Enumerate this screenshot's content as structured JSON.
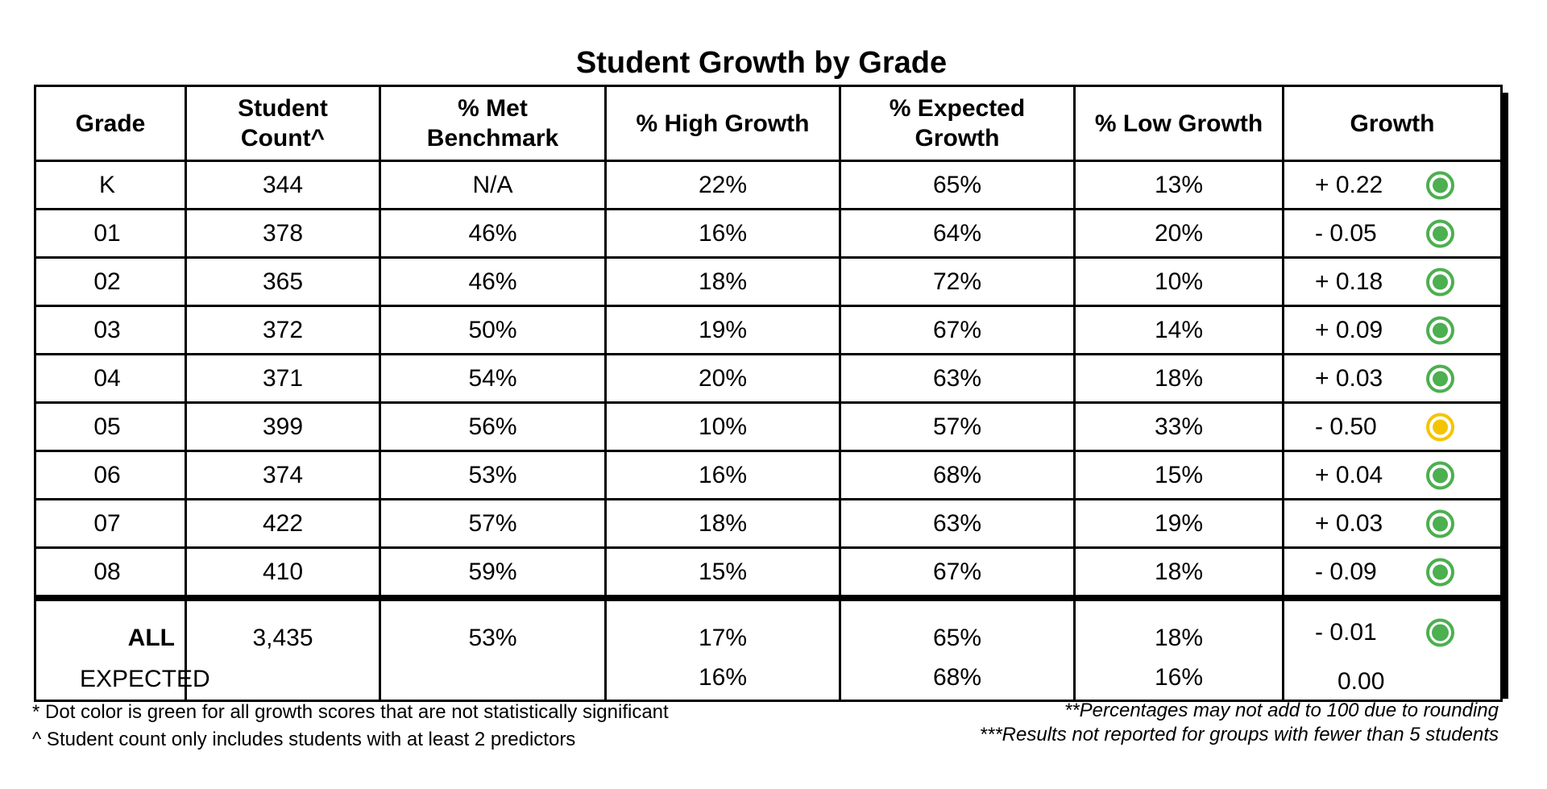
{
  "title": "Student Growth by Grade",
  "headers": {
    "grade": "Grade",
    "student_count_1": "Student",
    "student_count_2": "Count^",
    "met_benchmark_1": "% Met",
    "met_benchmark_2": "Benchmark",
    "high_growth": "% High Growth",
    "expected_growth_1": "% Expected",
    "expected_growth_2": "Growth",
    "low_growth": "% Low Growth",
    "growth": "Growth"
  },
  "rows": [
    {
      "grade": "K",
      "count": "344",
      "met": "N/A",
      "high": "22%",
      "expected": "65%",
      "low": "13%",
      "growth": "+ 0.22",
      "dot": "green"
    },
    {
      "grade": "01",
      "count": "378",
      "met": "46%",
      "high": "16%",
      "expected": "64%",
      "low": "20%",
      "growth": "- 0.05",
      "dot": "green"
    },
    {
      "grade": "02",
      "count": "365",
      "met": "46%",
      "high": "18%",
      "expected": "72%",
      "low": "10%",
      "growth": "+ 0.18",
      "dot": "green"
    },
    {
      "grade": "03",
      "count": "372",
      "met": "50%",
      "high": "19%",
      "expected": "67%",
      "low": "14%",
      "growth": "+ 0.09",
      "dot": "green"
    },
    {
      "grade": "04",
      "count": "371",
      "met": "54%",
      "high": "20%",
      "expected": "63%",
      "low": "18%",
      "growth": "+ 0.03",
      "dot": "green"
    },
    {
      "grade": "05",
      "count": "399",
      "met": "56%",
      "high": "10%",
      "expected": "57%",
      "low": "33%",
      "growth": "- 0.50",
      "dot": "yellow"
    },
    {
      "grade": "06",
      "count": "374",
      "met": "53%",
      "high": "16%",
      "expected": "68%",
      "low": "15%",
      "growth": "+ 0.04",
      "dot": "green"
    },
    {
      "grade": "07",
      "count": "422",
      "met": "57%",
      "high": "18%",
      "expected": "63%",
      "low": "19%",
      "growth": "+ 0.03",
      "dot": "green"
    },
    {
      "grade": "08",
      "count": "410",
      "met": "59%",
      "high": "15%",
      "expected": "67%",
      "low": "18%",
      "growth": "- 0.09",
      "dot": "green"
    }
  ],
  "summary": {
    "all": {
      "label": "ALL",
      "count": "3,435",
      "met": "53%",
      "high": "17%",
      "expected": "65%",
      "low": "18%",
      "growth": "- 0.01",
      "dot": "green"
    },
    "expected": {
      "label": "EXPECTED",
      "high": "16%",
      "expected": "68%",
      "low": "16%",
      "growth": "0.00"
    }
  },
  "footnotes": {
    "dot_color": "* Dot color is green for all growth scores that are not statistically significant",
    "student_count": "^ Student count only includes students with at least 2 predictors",
    "rounding": "**Percentages may not add to 100 due to rounding",
    "not_reported": "***Results not reported for groups with fewer than 5 students"
  },
  "colors": {
    "green_dot": "#4caf50",
    "yellow_dot": "#f5c400"
  }
}
